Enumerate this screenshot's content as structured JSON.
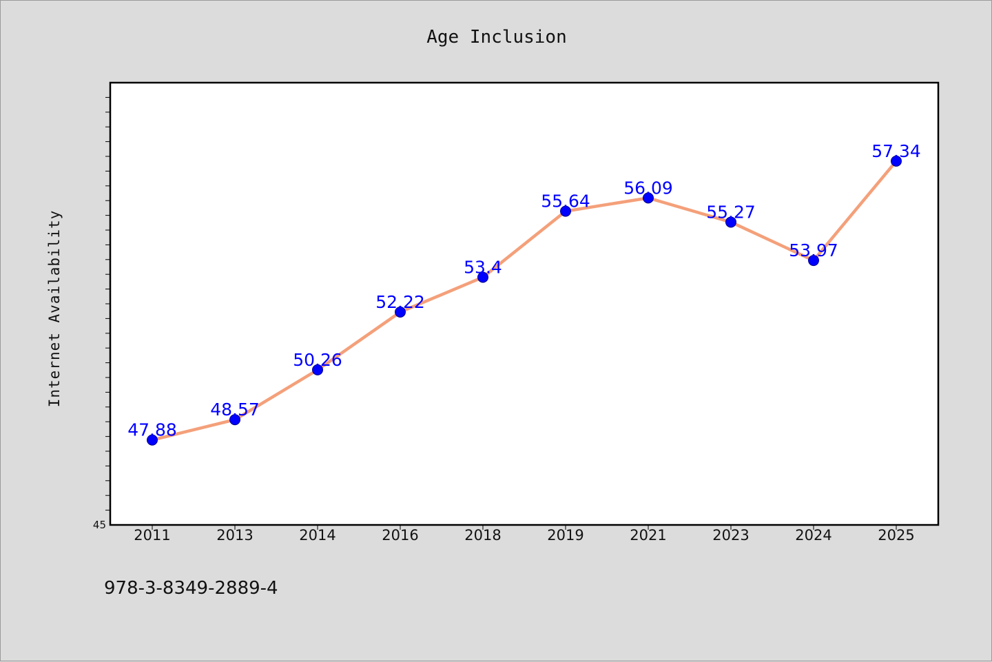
{
  "chart_data": {
    "type": "line",
    "title": "Age Inclusion",
    "ylabel": "Internet Availability",
    "xlabel": "",
    "categories": [
      "2011",
      "2013",
      "2014",
      "2016",
      "2018",
      "2019",
      "2021",
      "2023",
      "2024",
      "2025"
    ],
    "series": [
      {
        "values": [
          47.88,
          48.57,
          50.26,
          52.22,
          53.4,
          55.64,
          56.09,
          55.27,
          53.97,
          57.34
        ],
        "line_color": "#f4a07a",
        "marker_color": "#0000ff"
      }
    ],
    "ylim": [
      45,
      60
    ],
    "y_tick_labels": [
      "45"
    ],
    "data_labels": [
      "47.88",
      "48.57",
      "50.26",
      "52.22",
      "53.4",
      "55.64",
      "56.09",
      "55.27",
      "53.97",
      "57.34"
    ],
    "grid": false,
    "legend": "none"
  },
  "footer": {
    "isbn": "978-3-8349-2889-4"
  },
  "colors": {
    "background": "#dcdcdc",
    "plot_background": "#ffffff",
    "label_color": "#0000ff"
  }
}
